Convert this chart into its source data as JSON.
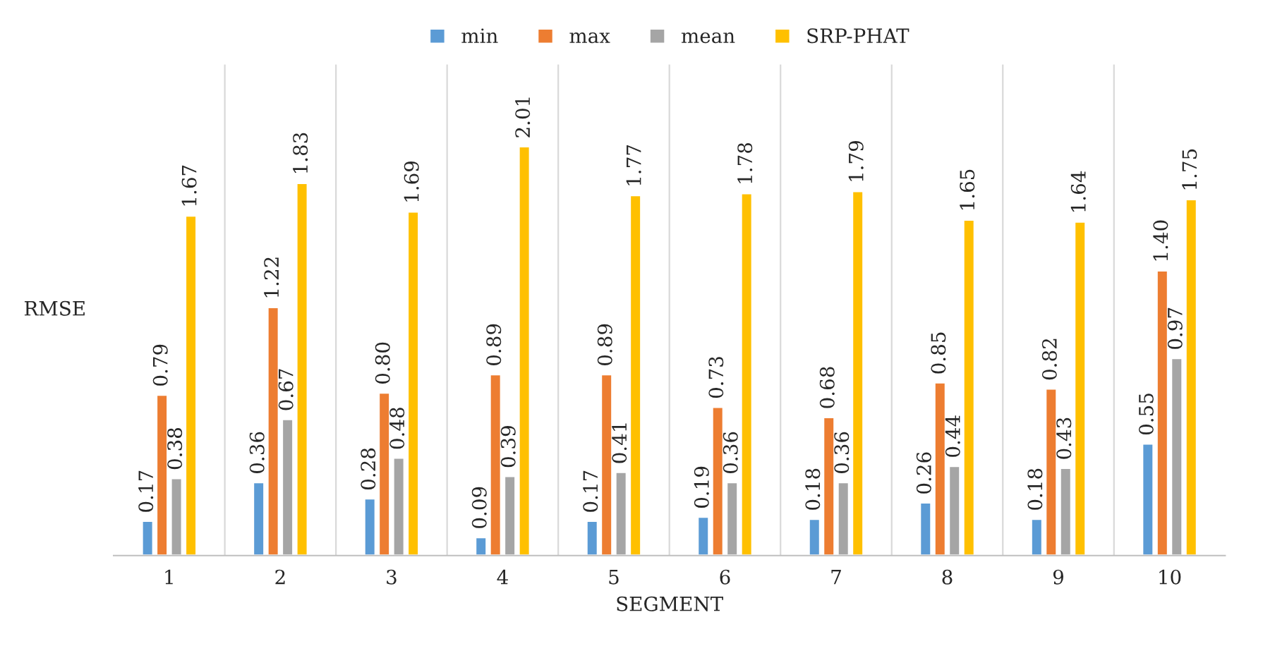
{
  "chart_data": {
    "type": "bar",
    "xlabel": "SEGMENT",
    "ylabel": "RMSE",
    "categories": [
      "1",
      "2",
      "3",
      "4",
      "5",
      "6",
      "7",
      "8",
      "9",
      "10"
    ],
    "series": [
      {
        "name": "min",
        "color": "#5b9bd5",
        "values": [
          0.17,
          0.36,
          0.28,
          0.09,
          0.17,
          0.19,
          0.18,
          0.26,
          0.18,
          0.55
        ],
        "value_labels": [
          "0.17",
          "0.36",
          "0.28",
          "0.09",
          "0.17",
          "0.19",
          "0.18",
          "0.26",
          "0.18",
          "0.55"
        ]
      },
      {
        "name": "max",
        "color": "#ed7d31",
        "values": [
          0.79,
          1.22,
          0.8,
          0.89,
          0.89,
          0.73,
          0.68,
          0.85,
          0.82,
          1.4
        ],
        "value_labels": [
          "0.79",
          "1.22",
          "0.80",
          "0.89",
          "0.89",
          "0.73",
          "0.68",
          "0.85",
          "0.82",
          "1.40"
        ]
      },
      {
        "name": "mean",
        "color": "#a5a5a5",
        "values": [
          0.38,
          0.67,
          0.48,
          0.39,
          0.41,
          0.36,
          0.36,
          0.44,
          0.43,
          0.97
        ],
        "value_labels": [
          "0.38",
          "0.67",
          "0.48",
          "0.39",
          "0.41",
          "0.36",
          "0.36",
          "0.44",
          "0.43",
          "0.97"
        ]
      },
      {
        "name": "SRP-PHAT",
        "color": "#ffc000",
        "values": [
          1.67,
          1.83,
          1.69,
          2.01,
          1.77,
          1.78,
          1.79,
          1.65,
          1.64,
          1.75
        ],
        "value_labels": [
          "1.67",
          "1.83",
          "1.69",
          "2.01",
          "1.77",
          "1.78",
          "1.79",
          "1.65",
          "1.64",
          "1.75"
        ]
      }
    ],
    "legend": "top",
    "grid": "x",
    "tick_labels": "x"
  }
}
